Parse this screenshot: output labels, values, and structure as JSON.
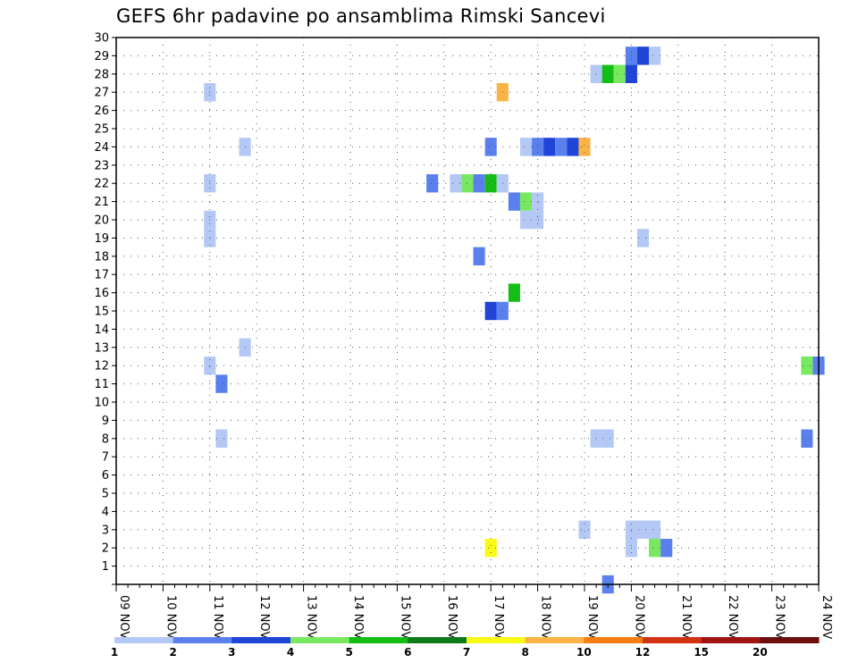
{
  "chart_data": {
    "type": "heatmap",
    "title": "GEFS 6hr padavine po ansamblima Rimski Sancevi",
    "xlabel": "",
    "ylabel": "",
    "x_ticks": [
      "09 NOV",
      "10 NOV",
      "11 NOV",
      "12 NOV",
      "13 NOV",
      "14 NOV",
      "15 NOV",
      "16 NOV",
      "17 NOV",
      "18 NOV",
      "19 NOV",
      "20 NOV",
      "21 NOV",
      "22 NOV",
      "23 NOV",
      "24 NOV"
    ],
    "xlim": [
      0,
      60
    ],
    "y_ticks": [
      1,
      2,
      3,
      4,
      5,
      6,
      7,
      8,
      9,
      10,
      11,
      12,
      13,
      14,
      15,
      16,
      17,
      18,
      19,
      20,
      21,
      22,
      23,
      24,
      25,
      26,
      27,
      28,
      29,
      30
    ],
    "ylim": [
      0,
      30
    ],
    "grid": true,
    "color_scale": {
      "labels": [
        "1",
        "2",
        "3",
        "4",
        "5",
        "6",
        "7",
        "8",
        "10",
        "12",
        "15",
        "20"
      ],
      "colors": [
        "#b4c8f5",
        "#5a80ee",
        "#1f44d8",
        "#78e860",
        "#14be14",
        "#0e7a1a",
        "#fafa14",
        "#fab446",
        "#f57d12",
        "#d23212",
        "#a01414",
        "#6e0e0e"
      ]
    },
    "cells": [
      {
        "t": 44,
        "m": 29,
        "v": 2
      },
      {
        "t": 45,
        "m": 29,
        "v": 3
      },
      {
        "t": 46,
        "m": 29,
        "v": 1
      },
      {
        "t": 41,
        "m": 28,
        "v": 1
      },
      {
        "t": 42,
        "m": 28,
        "v": 5
      },
      {
        "t": 43,
        "m": 28,
        "v": 4
      },
      {
        "t": 44,
        "m": 28,
        "v": 3
      },
      {
        "t": 8,
        "m": 27,
        "v": 1
      },
      {
        "t": 33,
        "m": 27,
        "v": 8
      },
      {
        "t": 11,
        "m": 24,
        "v": 1
      },
      {
        "t": 32,
        "m": 24,
        "v": 2
      },
      {
        "t": 35,
        "m": 24,
        "v": 1
      },
      {
        "t": 36,
        "m": 24,
        "v": 2
      },
      {
        "t": 37,
        "m": 24,
        "v": 3
      },
      {
        "t": 38,
        "m": 24,
        "v": 2
      },
      {
        "t": 39,
        "m": 24,
        "v": 3
      },
      {
        "t": 40,
        "m": 24,
        "v": 8
      },
      {
        "t": 8,
        "m": 22,
        "v": 1
      },
      {
        "t": 27,
        "m": 22,
        "v": 2
      },
      {
        "t": 29,
        "m": 22,
        "v": 1
      },
      {
        "t": 30,
        "m": 22,
        "v": 4
      },
      {
        "t": 31,
        "m": 22,
        "v": 2
      },
      {
        "t": 32,
        "m": 22,
        "v": 5
      },
      {
        "t": 33,
        "m": 22,
        "v": 1
      },
      {
        "t": 34,
        "m": 21,
        "v": 2
      },
      {
        "t": 35,
        "m": 21,
        "v": 4
      },
      {
        "t": 36,
        "m": 21,
        "v": 1
      },
      {
        "t": 8,
        "m": 20,
        "v": 1
      },
      {
        "t": 35,
        "m": 20,
        "v": 1
      },
      {
        "t": 36,
        "m": 20,
        "v": 1
      },
      {
        "t": 8,
        "m": 19,
        "v": 1
      },
      {
        "t": 45,
        "m": 19,
        "v": 1
      },
      {
        "t": 31,
        "m": 18,
        "v": 2
      },
      {
        "t": 34,
        "m": 16,
        "v": 5
      },
      {
        "t": 32,
        "m": 15,
        "v": 3
      },
      {
        "t": 33,
        "m": 15,
        "v": 2
      },
      {
        "t": 11,
        "m": 13,
        "v": 1
      },
      {
        "t": 8,
        "m": 12,
        "v": 1
      },
      {
        "t": 59,
        "m": 12,
        "v": 4
      },
      {
        "t": 60,
        "m": 12,
        "v": 2
      },
      {
        "t": 9,
        "m": 11,
        "v": 2
      },
      {
        "t": 9,
        "m": 8,
        "v": 1
      },
      {
        "t": 41,
        "m": 8,
        "v": 1
      },
      {
        "t": 42,
        "m": 8,
        "v": 1
      },
      {
        "t": 59,
        "m": 8,
        "v": 2
      },
      {
        "t": 40,
        "m": 3,
        "v": 1
      },
      {
        "t": 44,
        "m": 3,
        "v": 1
      },
      {
        "t": 45,
        "m": 3,
        "v": 1
      },
      {
        "t": 46,
        "m": 3,
        "v": 1
      },
      {
        "t": 32,
        "m": 2,
        "v": 7
      },
      {
        "t": 44,
        "m": 2,
        "v": 1
      },
      {
        "t": 46,
        "m": 2,
        "v": 4
      },
      {
        "t": 47,
        "m": 2,
        "v": 2
      },
      {
        "t": 42,
        "m": 0,
        "v": 2
      }
    ]
  }
}
